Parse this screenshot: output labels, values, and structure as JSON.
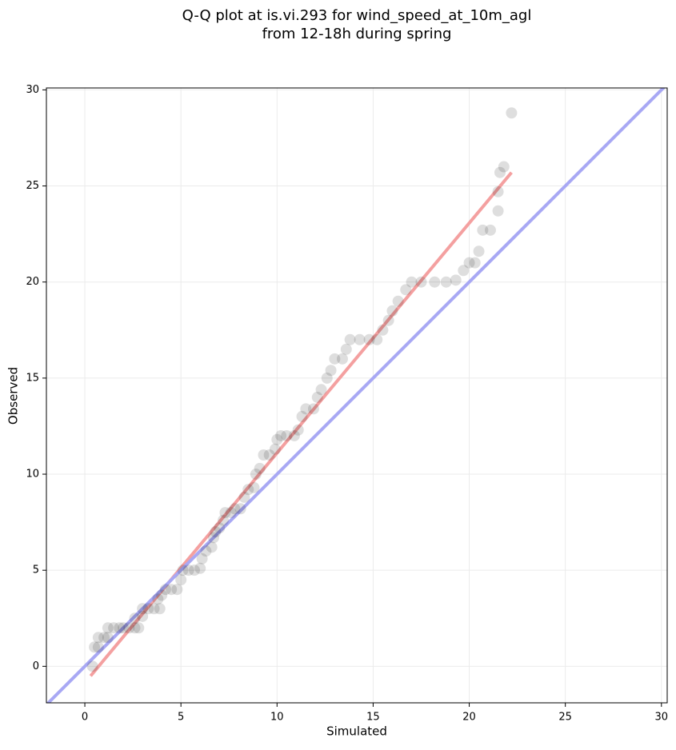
{
  "chart_data": {
    "type": "scatter",
    "title": "Q-Q plot at is.vi.293 for wind_speed_at_10m_agl",
    "subtitle": "from 12-18h during spring",
    "x_label": "Simulated",
    "y_label": "Observed",
    "xlim": [
      -2,
      30.3
    ],
    "ylim": [
      -1.9,
      30.1
    ],
    "xticks": [
      0,
      5,
      10,
      15,
      20,
      25,
      30
    ],
    "yticks": [
      0,
      5,
      10,
      15,
      20,
      25,
      30
    ],
    "grid": true,
    "color": "#000000",
    "x": [
      0.4,
      0.5,
      0.7,
      0.7,
      1,
      1.2,
      1.2,
      1.5,
      1.8,
      2,
      2.3,
      2.6,
      2.8,
      2.6,
      3,
      3,
      3.3,
      3.6,
      3.9,
      3.8,
      4,
      4.2,
      4.5,
      4.8,
      5,
      5.1,
      5.4,
      5.7,
      6,
      6.1,
      6.3,
      6.6,
      6.7,
      6.8,
      7,
      7.2,
      7.3,
      7.6,
      7.8,
      8.1,
      8.3,
      8.5,
      8.8,
      8.9,
      9.1,
      9.3,
      9.6,
      9.9,
      10,
      10.2,
      10.5,
      10.9,
      11.1,
      11.3,
      11.5,
      11.9,
      12.1,
      12.3,
      12.6,
      12.8,
      13,
      13.4,
      13.6,
      13.8,
      14.3,
      14.8,
      15.2,
      15.5,
      15.8,
      16,
      16.3,
      16.7,
      17,
      17.5,
      18.2,
      18.8,
      19.3,
      19.7,
      20,
      20.3,
      20.5,
      20.7,
      21.1,
      21.5,
      21.5,
      21.6,
      21.8,
      22.2
    ],
    "y": [
      0,
      1,
      1,
      1.5,
      1.5,
      1.5,
      2,
      2,
      2,
      2,
      2,
      2,
      2,
      2.5,
      2.6,
      3,
      3,
      3,
      3,
      3.5,
      3.7,
      4,
      4,
      4,
      4.5,
      5,
      5,
      5,
      5.1,
      5.6,
      6,
      6.2,
      6.7,
      7,
      7.2,
      7.6,
      8,
      8,
      8.2,
      8.2,
      8.8,
      9.2,
      9.3,
      10,
      10.3,
      11,
      11,
      11.3,
      11.8,
      12,
      12,
      12,
      12.3,
      13,
      13.4,
      13.4,
      14,
      14.4,
      15,
      15.4,
      16,
      16,
      16.5,
      17,
      17,
      17,
      17,
      17.5,
      18,
      18.5,
      19,
      19.6,
      20,
      20,
      20,
      20,
      20.1,
      20.6,
      21,
      21,
      21.6,
      22.7,
      22.7,
      23.7,
      24.7,
      25.7,
      26,
      28.8
    ],
    "lines": [
      {
        "color": "#f4a0a0",
        "x": [
          0.3,
          22.2
        ],
        "y": [
          -0.5,
          25.7
        ]
      },
      {
        "color": "#a8a8f4",
        "x": [
          -2,
          30.3
        ],
        "y": [
          -2,
          30.3
        ]
      }
    ]
  }
}
